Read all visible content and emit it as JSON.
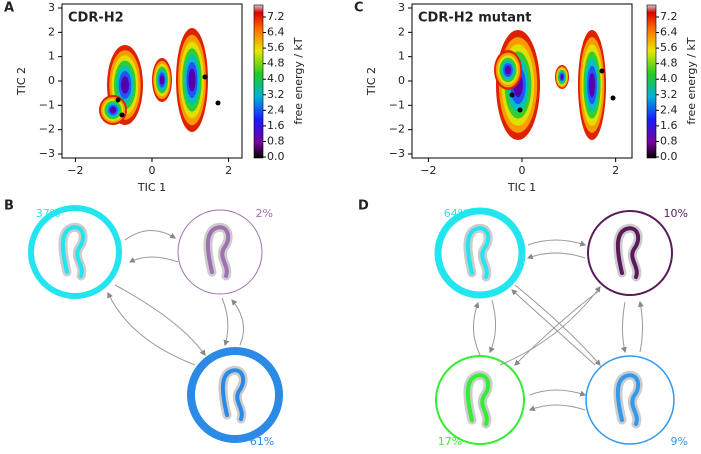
{
  "panels": [
    {
      "label": "A",
      "title": "CDR-H2",
      "xlabel": "TIC 1",
      "ylabel": "TIC 2",
      "xticks": [
        "−2",
        "0",
        "2"
      ],
      "yticks": [
        "3",
        "2",
        "1",
        "0",
        "−1",
        "−2",
        "−3"
      ],
      "colorbar_label": "free energy / kT",
      "colorbar_ticks": [
        "7.2",
        "6.4",
        "5.6",
        "4.8",
        "4.0",
        "3.2",
        "2.4",
        "1.6",
        "0.8",
        "0.0"
      ]
    },
    {
      "label": "B",
      "states": [
        "37%",
        "2%",
        "61%"
      ]
    },
    {
      "label": "C",
      "title": "CDR-H2 mutant",
      "xlabel": "TIC 1",
      "ylabel": "TIC 2",
      "xticks": [
        "−2",
        "0",
        "2"
      ],
      "yticks": [
        "3",
        "2",
        "1",
        "0",
        "−1",
        "−2",
        "−3"
      ],
      "colorbar_label": "free energy / kT",
      "colorbar_ticks": [
        "7.2",
        "6.4",
        "5.6",
        "4.8",
        "4.0",
        "3.2",
        "2.4",
        "1.6",
        "0.8",
        "0.0"
      ]
    },
    {
      "label": "D",
      "states": [
        "64%",
        "10%",
        "17%",
        "9%"
      ]
    }
  ]
}
